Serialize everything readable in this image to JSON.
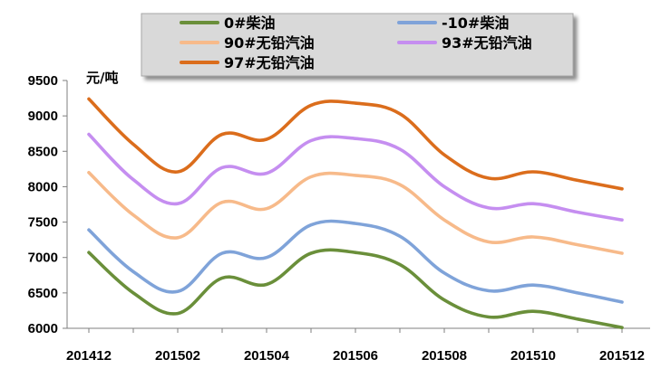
{
  "chart_data": {
    "type": "line",
    "title": "",
    "xlabel": "",
    "ylabel": "元/吨",
    "x": [
      "201412",
      "201501",
      "201502",
      "201503",
      "201504",
      "201505",
      "201506",
      "201507",
      "201508",
      "201509",
      "201510",
      "201511",
      "201512"
    ],
    "x_tick_labels": [
      "201412",
      "201502",
      "201504",
      "201506",
      "201508",
      "201510",
      "201512"
    ],
    "y_tick_labels": [
      "9500",
      "9000",
      "8500",
      "8000",
      "7500",
      "7000",
      "6500",
      "6000"
    ],
    "ylim": [
      6000,
      9500
    ],
    "grid": false,
    "legend_position": "top",
    "series": [
      {
        "name": "0#柴油",
        "color": "#6a8f3a",
        "values": [
          7070,
          6500,
          6210,
          6710,
          6620,
          7060,
          7070,
          6900,
          6400,
          6160,
          6240,
          6130,
          6010
        ]
      },
      {
        "name": "-10#柴油",
        "color": "#7fa3d9",
        "values": [
          7390,
          6800,
          6520,
          7060,
          7000,
          7460,
          7480,
          7300,
          6780,
          6530,
          6610,
          6500,
          6370
        ]
      },
      {
        "name": "90#无铅汽油",
        "color": "#f7ba8a",
        "values": [
          8200,
          7600,
          7280,
          7780,
          7690,
          8140,
          8160,
          8030,
          7530,
          7220,
          7290,
          7180,
          7060
        ]
      },
      {
        "name": "93#无铅汽油",
        "color": "#c58ef0",
        "values": [
          8740,
          8100,
          7760,
          8270,
          8190,
          8650,
          8680,
          8530,
          8000,
          7700,
          7760,
          7640,
          7530
        ]
      },
      {
        "name": "97#无铅汽油",
        "color": "#db6d1c",
        "values": [
          9240,
          8600,
          8210,
          8740,
          8670,
          9150,
          9180,
          9030,
          8450,
          8120,
          8210,
          8090,
          7970
        ]
      }
    ]
  }
}
